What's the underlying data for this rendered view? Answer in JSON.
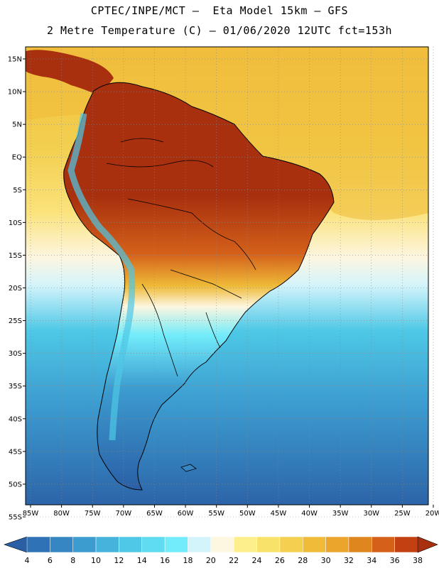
{
  "title": {
    "line1": "CPTEC/INPE/MCT –  Eta Model 15km – GFS",
    "line2": "2 Metre Temperature (C) – 01/06/2020 12UTC fct=153h"
  },
  "map": {
    "lat_labels": [
      "15N",
      "10N",
      "5N",
      "EQ",
      "5S",
      "10S",
      "15S",
      "20S",
      "25S",
      "30S",
      "35S",
      "40S",
      "45S",
      "50S",
      "55S"
    ],
    "lon_labels": [
      "85W",
      "80W",
      "75W",
      "70W",
      "65W",
      "60W",
      "55W",
      "50W",
      "45W",
      "40W",
      "35W",
      "30W",
      "25W",
      "20W"
    ],
    "lat_range": [
      15,
      -55
    ],
    "lon_range": [
      -85,
      -20
    ]
  },
  "colorbar": {
    "labels": [
      "4",
      "6",
      "8",
      "10",
      "12",
      "14",
      "16",
      "18",
      "20",
      "22",
      "24",
      "26",
      "28",
      "30",
      "32",
      "34",
      "36",
      "38"
    ],
    "colors": [
      "#2a5fa6",
      "#2f72b5",
      "#3586c2",
      "#3c9cd0",
      "#45b3db",
      "#4ec8e6",
      "#5fdcef",
      "#72ecfa",
      "#d4f4fb",
      "#fdf6e0",
      "#fdf08c",
      "#f9e26a",
      "#f5cf50",
      "#efbb38",
      "#eba42c",
      "#e0861f",
      "#d4601a",
      "#c24012",
      "#a8300e"
    ]
  },
  "colors": {
    "ocean_warm": "#f2c040",
    "ocean_cool": "#4ec8e6",
    "land_hot": "#a8300e",
    "border": "#000000"
  }
}
